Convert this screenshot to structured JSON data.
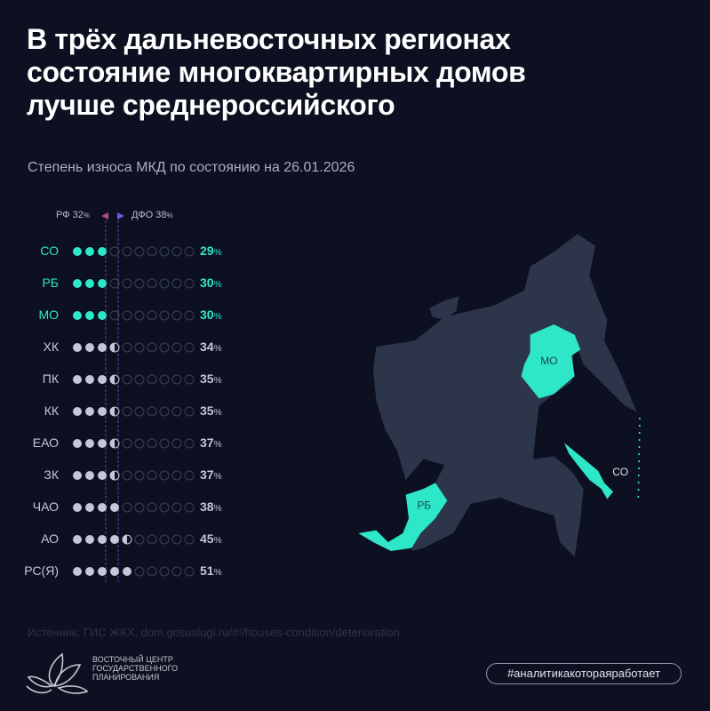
{
  "header": {
    "title_lines": [
      "В трёх дальневосточных регионах",
      "состояние многоквартирных домов",
      "лучше среднероссийского"
    ],
    "subtitle": "Степень износа МКД по состоянию на 26.01.2026"
  },
  "colors": {
    "background": "#0c1020",
    "highlight": "#2ee6c8",
    "normal": "#c3c7d8",
    "empty_dot": "#3a4256",
    "land": "#2c3549",
    "rf_marker": "#b04a8c",
    "dfo_marker": "#6a5be0"
  },
  "chart_data": {
    "type": "dot-matrix",
    "unit": "%",
    "dots_total": 10,
    "percent_per_dot": 10,
    "reference_lines": [
      {
        "label": "РФ",
        "value": 32,
        "text": "РФ 32",
        "color": "#b04a8c"
      },
      {
        "label": "ДФО",
        "value": 38,
        "text": "ДФО 38",
        "color": "#6a5be0"
      }
    ],
    "categories": [
      "СО",
      "РБ",
      "МО",
      "ХК",
      "ПК",
      "КК",
      "ЕАО",
      "ЗК",
      "ЧАО",
      "АО",
      "РС(Я)"
    ],
    "values": [
      29,
      30,
      30,
      34,
      35,
      35,
      37,
      37,
      38,
      45,
      51
    ],
    "value_labels": [
      "29",
      "30",
      "30",
      "34",
      "35",
      "35",
      "37",
      "37",
      "38",
      "45",
      "51"
    ],
    "highlighted": [
      "СО",
      "РБ",
      "МО"
    ]
  },
  "map": {
    "labels": {
      "mo": "МО",
      "rb": "РБ",
      "so": "СО"
    }
  },
  "footer": {
    "source": "Источник: ГИС ЖКХ, dom.gosuslugi.ru/#!/houses-condition/deterioration",
    "logo_lines": [
      "ВОСТОЧНЫЙ ЦЕНТР",
      "ГОСУДАРСТВЕННОГО",
      "ПЛАНИРОВАНИЯ"
    ],
    "hashtag": "#аналитикакотораяработает"
  }
}
